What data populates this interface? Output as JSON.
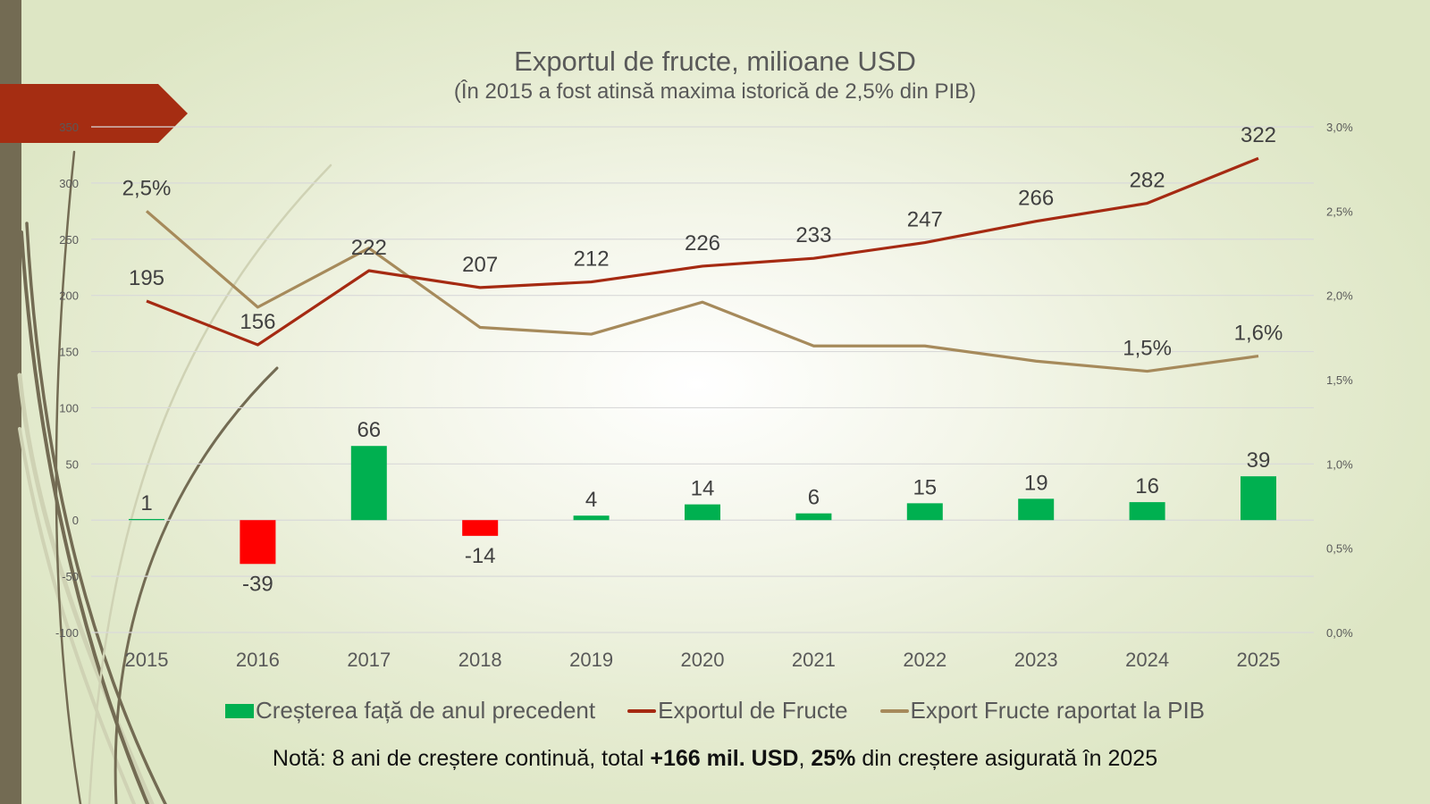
{
  "title": "Exportul de fructe, milioane USD",
  "subtitle": "(În 2015 a fost atinsă maxima istorică de 2,5% din PIB)",
  "colors": {
    "growth_positive": "#00b050",
    "growth_negative": "#ff0000",
    "export_line": "#a52a12",
    "pib_line": "#a68a5b",
    "banner": "#a52d12",
    "left_bar": "#736b53"
  },
  "chart_data": {
    "type": "bar+line",
    "title": "Exportul de fructe, milioane USD",
    "subtitle": "(În 2015 a fost atinsă maxima istorică de 2,5% din PIB)",
    "categories": [
      "2015",
      "2016",
      "2017",
      "2018",
      "2019",
      "2020",
      "2021",
      "2022",
      "2023",
      "2024",
      "2025"
    ],
    "y_left": {
      "min": -100,
      "max": 350,
      "step": 50,
      "ticks": [
        "-100",
        "-50",
        "0",
        "50",
        "100",
        "150",
        "200",
        "250",
        "300",
        "350"
      ]
    },
    "y_right": {
      "min": 0.0,
      "max": 3.0,
      "step": 0.5,
      "ticks": [
        "0,0%",
        "0,5%",
        "1,0%",
        "1,5%",
        "2,0%",
        "2,5%",
        "3,0%"
      ]
    },
    "grid": true,
    "legend_position": "bottom",
    "series": [
      {
        "name": "Creșterea față de anul precedent",
        "type": "bar",
        "axis": "left",
        "values": [
          1,
          -39,
          66,
          -14,
          4,
          14,
          6,
          15,
          19,
          16,
          39
        ],
        "labels": [
          "1",
          "-39",
          "66",
          "-14",
          "4",
          "14",
          "6",
          "15",
          "19",
          "16",
          "39"
        ]
      },
      {
        "name": "Exportul de Fructe",
        "type": "line",
        "axis": "left",
        "values": [
          195,
          156,
          222,
          207,
          212,
          226,
          233,
          247,
          266,
          282,
          322
        ],
        "labels": [
          "195",
          "156",
          "222",
          "207",
          "212",
          "226",
          "233",
          "247",
          "266",
          "282",
          "322"
        ]
      },
      {
        "name": "Export Fructe raportat la PIB",
        "type": "line",
        "axis": "right",
        "values": [
          2.5,
          1.93,
          2.28,
          1.81,
          1.77,
          1.96,
          1.7,
          1.7,
          1.61,
          1.55,
          1.64
        ],
        "labels": [
          "2,5%",
          "",
          "",
          "",
          "",
          "",
          "",
          "",
          "",
          "1,5%",
          "1,6%"
        ]
      }
    ]
  },
  "legend": [
    {
      "label": "Creșterea față de anul precedent",
      "kind": "bar"
    },
    {
      "label": "Exportul de Fructe",
      "kind": "line"
    },
    {
      "label": "Export Fructe raportat la PIB",
      "kind": "line"
    }
  ],
  "note": {
    "prefix": "Notă: 8 ani de creștere continuă, total ",
    "bold1": "+166 mil. USD",
    "mid": ", ",
    "bold2": "25%",
    "suffix": " din creștere asigurată în 2025"
  }
}
